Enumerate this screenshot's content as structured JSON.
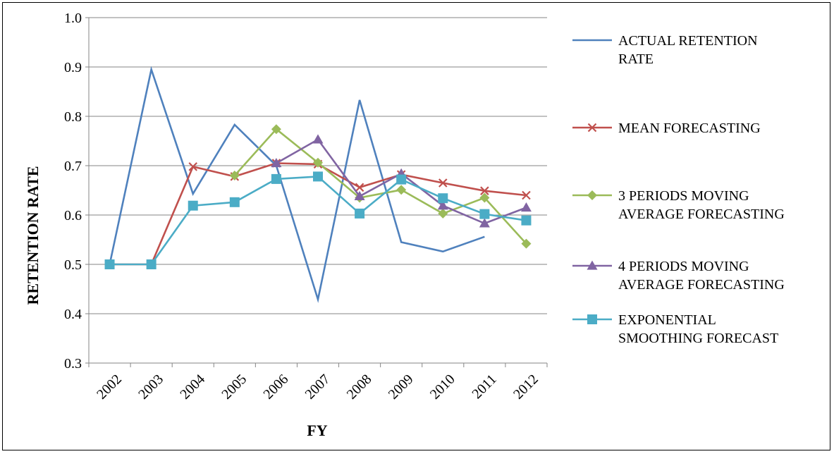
{
  "chart_data": {
    "type": "line",
    "title": "",
    "xlabel": "FY",
    "ylabel": "RETENTION RATE",
    "categories": [
      "2002",
      "2003",
      "2004",
      "2005",
      "2006",
      "2007",
      "2008",
      "2009",
      "2010",
      "2011",
      "2012"
    ],
    "ylim": [
      0.3,
      1.0
    ],
    "yticks": [
      "0.3",
      "0.4",
      "0.5",
      "0.6",
      "0.7",
      "0.8",
      "0.9",
      "1.0"
    ],
    "grid": true,
    "legend_position": "right",
    "series": [
      {
        "name": "ACTUAL RETENTION RATE",
        "name_lines": [
          "ACTUAL RETENTION",
          "RATE"
        ],
        "color": "#4F81BD",
        "marker": "none",
        "values": [
          0.5,
          0.895,
          0.643,
          0.783,
          0.7,
          0.429,
          0.833,
          0.545,
          0.526,
          0.556,
          null
        ]
      },
      {
        "name": "MEAN FORECASTING",
        "name_lines": [
          "MEAN FORECASTING"
        ],
        "color": "#C0504D",
        "marker": "x",
        "values": [
          0.5,
          0.5,
          0.698,
          0.678,
          0.705,
          0.703,
          0.656,
          0.682,
          0.665,
          0.649,
          0.64
        ]
      },
      {
        "name": "3 PERIODS MOVING AVERAGE FORECASTING",
        "name_lines": [
          "3 PERIODS MOVING",
          "AVERAGE FORECASTING"
        ],
        "color": "#9BBB59",
        "marker": "diamond",
        "values": [
          null,
          null,
          null,
          0.68,
          0.774,
          0.706,
          0.635,
          0.651,
          0.603,
          0.635,
          0.542
        ]
      },
      {
        "name": "4 PERIODS MOVING AVERAGE FORECASTING",
        "name_lines": [
          "4 PERIODS MOVING",
          "AVERAGE FORECASTING"
        ],
        "color": "#8064A2",
        "marker": "triangle",
        "values": [
          null,
          null,
          null,
          null,
          0.705,
          0.753,
          0.638,
          0.684,
          0.619,
          0.583,
          0.615
        ]
      },
      {
        "name": "EXPONENTIAL SMOOTHING FORECAST",
        "name_lines": [
          "EXPONENTIAL",
          "SMOOTHING FORECAST"
        ],
        "color": "#4BACC6",
        "marker": "square",
        "values": [
          0.5,
          0.5,
          0.619,
          0.626,
          0.673,
          0.678,
          0.603,
          0.672,
          0.634,
          0.602,
          0.589
        ]
      }
    ]
  }
}
